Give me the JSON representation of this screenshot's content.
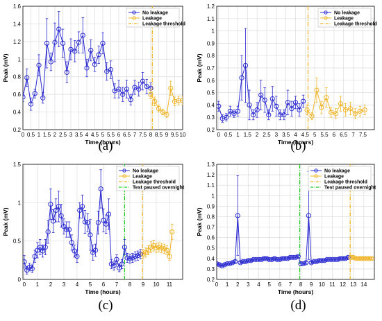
{
  "colors": {
    "no_leakage": "#2a2ad0",
    "leakage": "#f0b428",
    "threshold": "#f0b428",
    "paused": "#22cc22",
    "grid": "#dcdcdc"
  },
  "chart_data": [
    {
      "type": "line",
      "panel": "(a)",
      "xlabel": "Time (hours)",
      "ylabel": "Peak (mV)",
      "xlim": [
        0,
        10
      ],
      "ylim": [
        0.2,
        1.6
      ],
      "xticks": [
        0,
        0.5,
        1,
        1.5,
        2,
        2.5,
        3,
        3.5,
        4,
        4.5,
        5,
        5.5,
        6,
        6.5,
        7,
        7.5,
        8,
        8.5,
        9,
        9.5,
        10
      ],
      "xticklabels": [
        "0",
        "0.5",
        "1",
        "1.5",
        "2",
        "2.5",
        "3",
        "3.5",
        "4",
        "4.5",
        "5",
        "5.5",
        "6",
        "6.5",
        "7",
        "7.5",
        "8",
        "8.5",
        "9",
        "9.5",
        "10"
      ],
      "yticks": [
        0.2,
        0.4,
        0.6,
        0.8,
        1.0,
        1.2,
        1.4,
        1.6
      ],
      "yticklabels": [
        "0.2",
        "0.4",
        "0.6",
        "0.8",
        "1",
        "1.2",
        "1.4",
        "1.6"
      ],
      "legend": [
        "No leakage",
        "Leakage",
        "Leakage threshold"
      ],
      "series": [
        {
          "name": "No leakage",
          "x": [
            0,
            0.25,
            0.5,
            0.75,
            1,
            1.25,
            1.5,
            1.75,
            2,
            2.25,
            2.5,
            2.75,
            3,
            3.25,
            3.5,
            3.75,
            4,
            4.25,
            4.5,
            4.75,
            5,
            5.25,
            5.5,
            5.75,
            6,
            6.25,
            6.5,
            6.75,
            7,
            7.25,
            7.5,
            7.75,
            8
          ],
          "y": [
            0.57,
            0.79,
            0.49,
            0.61,
            0.93,
            0.56,
            1.18,
            0.97,
            1.19,
            1.34,
            1.18,
            0.85,
            1.11,
            1.09,
            1.19,
            1.27,
            0.9,
            1.1,
            0.94,
            1.05,
            1.18,
            0.86,
            0.88,
            0.64,
            0.66,
            0.6,
            0.66,
            0.54,
            0.68,
            0.66,
            0.75,
            0.69,
            0.67
          ],
          "err": [
            0.05,
            0.1,
            0.07,
            0.05,
            0.12,
            0.06,
            0.28,
            0.1,
            0.22,
            0.2,
            0.16,
            0.12,
            0.12,
            0.12,
            0.12,
            0.2,
            0.1,
            0.12,
            0.08,
            0.1,
            0.12,
            0.1,
            0.1,
            0.08,
            0.1,
            0.08,
            0.1,
            0.06,
            0.08,
            0.08,
            0.1,
            0.08,
            0.06
          ]
        },
        {
          "name": "Leakage",
          "x": [
            8,
            8.25,
            8.5,
            8.75,
            9,
            9.25,
            9.5,
            9.75,
            10
          ],
          "y": [
            0.6,
            0.52,
            0.44,
            0.4,
            0.37,
            0.67,
            0.52,
            0.53,
            0.53
          ],
          "err": [
            0.05,
            0.05,
            0.04,
            0.03,
            0.03,
            0.08,
            0.05,
            0.05,
            0.05
          ]
        }
      ],
      "vlines": [
        {
          "name": "Leakage threshold",
          "x": 8.1
        }
      ]
    },
    {
      "type": "line",
      "panel": "(b)",
      "xlabel": "Time (hours)",
      "ylabel": "Peak (mV)",
      "xlim": [
        -0.1,
        8.1
      ],
      "ylim": [
        0.2,
        1.2
      ],
      "xticks": [
        0,
        0.5,
        1,
        1.5,
        2,
        2.5,
        3,
        3.5,
        4,
        4.5,
        5,
        5.5,
        6,
        6.5,
        7,
        7.5
      ],
      "xticklabels": [
        "0",
        "0.5",
        "1",
        "1.5",
        "2",
        "2.5",
        "3",
        "3.5",
        "4",
        "4.5",
        "5",
        "5.5",
        "6",
        "6.5",
        "7",
        "7.5"
      ],
      "yticks": [
        0.2,
        0.3,
        0.4,
        0.5,
        0.6,
        0.7,
        0.8,
        0.9,
        1.0,
        1.1,
        1.2
      ],
      "yticklabels": [
        "0.2",
        "0.3",
        "0.4",
        "0.5",
        "0.6",
        "0.7",
        "0.8",
        "0.9",
        "1",
        "1.1",
        "1.2"
      ],
      "legend": [
        "No leakage",
        "Leakage",
        "Leakage threshold"
      ],
      "series": [
        {
          "name": "No leakage",
          "x": [
            0,
            0.2,
            0.4,
            0.6,
            0.8,
            1,
            1.2,
            1.4,
            1.6,
            1.8,
            2,
            2.2,
            2.4,
            2.6,
            2.8,
            3,
            3.2,
            3.4,
            3.6,
            3.8,
            4,
            4.2,
            4.4
          ],
          "y": [
            0.39,
            0.29,
            0.3,
            0.35,
            0.33,
            0.35,
            0.62,
            0.72,
            0.4,
            0.32,
            0.36,
            0.48,
            0.44,
            0.32,
            0.45,
            0.39,
            0.32,
            0.32,
            0.42,
            0.37,
            0.42,
            0.36,
            0.43
          ],
          "err": [
            0.04,
            0.03,
            0.03,
            0.04,
            0.03,
            0.04,
            0.18,
            0.3,
            0.12,
            0.04,
            0.06,
            0.12,
            0.1,
            0.04,
            0.1,
            0.08,
            0.04,
            0.04,
            0.1,
            0.06,
            0.05,
            0.05,
            0.05
          ]
        },
        {
          "name": "Leakage",
          "x": [
            4.6,
            4.85,
            5.1,
            5.35,
            5.6,
            5.85,
            6.1,
            6.35,
            6.6,
            6.85,
            7.1,
            7.35,
            7.6
          ],
          "y": [
            0.36,
            0.31,
            0.52,
            0.38,
            0.46,
            0.34,
            0.33,
            0.41,
            0.36,
            0.37,
            0.33,
            0.35,
            0.36
          ],
          "err": [
            0.04,
            0.03,
            0.1,
            0.05,
            0.08,
            0.04,
            0.04,
            0.06,
            0.05,
            0.05,
            0.04,
            0.04,
            0.04
          ]
        }
      ],
      "vlines": [
        {
          "name": "Leakage threshold",
          "x": 4.65
        }
      ]
    },
    {
      "type": "line",
      "panel": "(c)",
      "xlabel": "Time (hours)",
      "ylabel": "Peak (mV)",
      "xlim": [
        -0.1,
        12
      ],
      "ylim": [
        0,
        1.5
      ],
      "xticks": [
        0,
        1,
        2,
        3,
        4,
        5,
        6,
        7,
        8,
        9,
        10,
        11
      ],
      "xticklabels": [
        "0",
        "1",
        "2",
        "3",
        "4",
        "5",
        "6",
        "7",
        "8",
        "9",
        "10",
        "11"
      ],
      "yticks": [
        0,
        0.5,
        1.0,
        1.5
      ],
      "yticklabels": [
        "0",
        "0.5",
        "1",
        "1.5"
      ],
      "legend": [
        "No leakage",
        "Leakage",
        "Leakage threshold",
        "Test paused overnight"
      ],
      "series": [
        {
          "name": "No leakage",
          "x": [
            0,
            0.2,
            0.4,
            0.6,
            0.8,
            1,
            1.2,
            1.4,
            1.6,
            1.8,
            2,
            2.2,
            2.4,
            2.6,
            2.8,
            3,
            3.2,
            3.4,
            3.6,
            3.8,
            4,
            4.2,
            4.4,
            4.6,
            4.8,
            5,
            5.2,
            5.4,
            5.6,
            5.8,
            6,
            6.2,
            6.4,
            6.6,
            6.8,
            7,
            7.2,
            7.4,
            7.6,
            7.8,
            8,
            8.2,
            8.4,
            8.6,
            8.8
          ],
          "y": [
            0.23,
            0.12,
            0.16,
            0.14,
            0.3,
            0.38,
            0.42,
            0.37,
            0.42,
            0.62,
            0.98,
            0.76,
            0.9,
            0.95,
            0.83,
            0.69,
            0.65,
            0.65,
            0.48,
            0.37,
            0.3,
            0.9,
            0.95,
            0.75,
            0.74,
            0.58,
            0.35,
            0.38,
            0.74,
            1.18,
            0.77,
            0.72,
            0.85,
            0.2,
            0.18,
            0.26,
            0.15,
            0.2,
            0.42,
            0.28,
            0.27,
            0.28,
            0.3,
            0.31,
            0.33
          ],
          "err": [
            0.08,
            0.05,
            0.05,
            0.05,
            0.08,
            0.1,
            0.1,
            0.08,
            0.1,
            0.15,
            0.2,
            0.15,
            0.15,
            0.2,
            0.15,
            0.1,
            0.1,
            0.1,
            0.1,
            0.08,
            0.08,
            0.1,
            0.15,
            0.15,
            0.12,
            0.2,
            0.1,
            0.08,
            0.15,
            0.25,
            0.15,
            0.12,
            0.2,
            0.06,
            0.06,
            0.06,
            0.05,
            0.06,
            0.1,
            0.06,
            0.06,
            0.06,
            0.06,
            0.06,
            0.06
          ]
        },
        {
          "name": "Leakage",
          "x": [
            9,
            9.2,
            9.4,
            9.6,
            9.8,
            10,
            10.2,
            10.4,
            10.6,
            10.8,
            11,
            11.2
          ],
          "y": [
            0.33,
            0.35,
            0.38,
            0.42,
            0.44,
            0.41,
            0.42,
            0.41,
            0.4,
            0.38,
            0.3,
            0.62
          ],
          "err": [
            0.06,
            0.06,
            0.06,
            0.07,
            0.07,
            0.06,
            0.06,
            0.06,
            0.06,
            0.06,
            0.05,
            0.1
          ]
        }
      ],
      "vlines": [
        {
          "name": "Test paused overnight",
          "x": 7.6
        },
        {
          "name": "Leakage threshold",
          "x": 8.95
        }
      ]
    },
    {
      "type": "line",
      "panel": "(d)",
      "xlabel": "Time (hours)",
      "ylabel": "Peak (mV)",
      "xlim": [
        0,
        15
      ],
      "ylim": [
        0.2,
        1.3
      ],
      "xticks": [
        0,
        1,
        2,
        3,
        4,
        5,
        6,
        7,
        8,
        9,
        10,
        11,
        12,
        13,
        14
      ],
      "xticklabels": [
        "0",
        "1",
        "2",
        "3",
        "4",
        "5",
        "6",
        "7",
        "8",
        "9",
        "10",
        "11",
        "12",
        "13",
        "14"
      ],
      "yticks": [
        0.2,
        0.3,
        0.4,
        0.5,
        0.6,
        0.7,
        0.8,
        0.9,
        1.0,
        1.1,
        1.2,
        1.3
      ],
      "yticklabels": [
        "0.2",
        "0.3",
        "0.4",
        "0.5",
        "0.6",
        "0.7",
        "0.8",
        "0.9",
        "1",
        "1.1",
        "1.2",
        "1.3"
      ],
      "legend": [
        "No leakage",
        "Leakage",
        "Leakage threshold",
        "Test paused overnight"
      ],
      "series": [
        {
          "name": "No leakage",
          "x": [
            0,
            0.25,
            0.5,
            0.75,
            1,
            1.25,
            1.5,
            1.75,
            2,
            2.25,
            2.5,
            2.75,
            3,
            3.25,
            3.5,
            3.75,
            4,
            4.25,
            4.5,
            4.75,
            5,
            5.25,
            5.5,
            5.75,
            6,
            6.25,
            6.5,
            6.75,
            7,
            7.25,
            7.5,
            7.75,
            8,
            8.25,
            8.5,
            8.75,
            9,
            9.25,
            9.5,
            9.75,
            10,
            10.25,
            10.5,
            10.75,
            11,
            11.25,
            11.5,
            11.75,
            12,
            12.25,
            12.5
          ],
          "y": [
            0.35,
            0.34,
            0.33,
            0.34,
            0.35,
            0.35,
            0.36,
            0.37,
            0.81,
            0.36,
            0.37,
            0.37,
            0.38,
            0.38,
            0.39,
            0.39,
            0.39,
            0.39,
            0.4,
            0.4,
            0.39,
            0.39,
            0.4,
            0.39,
            0.39,
            0.4,
            0.4,
            0.4,
            0.41,
            0.41,
            0.41,
            0.42,
            0.35,
            0.35,
            0.36,
            0.81,
            0.36,
            0.37,
            0.37,
            0.38,
            0.38,
            0.38,
            0.39,
            0.39,
            0.39,
            0.39,
            0.39,
            0.4,
            0.4,
            0.4,
            0.41
          ],
          "err": [
            0.01,
            0.01,
            0.01,
            0.01,
            0.01,
            0.01,
            0.01,
            0.01,
            0.38,
            0.01,
            0.01,
            0.01,
            0.01,
            0.01,
            0.01,
            0.01,
            0.01,
            0.01,
            0.01,
            0.01,
            0.01,
            0.01,
            0.01,
            0.01,
            0.01,
            0.01,
            0.01,
            0.01,
            0.01,
            0.01,
            0.01,
            0.01,
            0.02,
            0.01,
            0.01,
            0.42,
            0.01,
            0.01,
            0.01,
            0.01,
            0.01,
            0.01,
            0.01,
            0.01,
            0.01,
            0.01,
            0.01,
            0.01,
            0.01,
            0.01,
            0.01
          ]
        },
        {
          "name": "Leakage",
          "x": [
            12.75,
            13,
            13.25,
            13.5,
            13.75,
            14,
            14.25,
            14.5,
            14.75
          ],
          "y": [
            0.41,
            0.41,
            0.4,
            0.4,
            0.4,
            0.4,
            0.4,
            0.4,
            0.4
          ],
          "err": [
            0.01,
            0.01,
            0.01,
            0.01,
            0.01,
            0.01,
            0.01,
            0.01,
            0.01
          ]
        }
      ],
      "vlines": [
        {
          "name": "Test paused overnight",
          "x": 7.9
        },
        {
          "name": "Leakage threshold",
          "x": 12.7
        }
      ]
    }
  ]
}
